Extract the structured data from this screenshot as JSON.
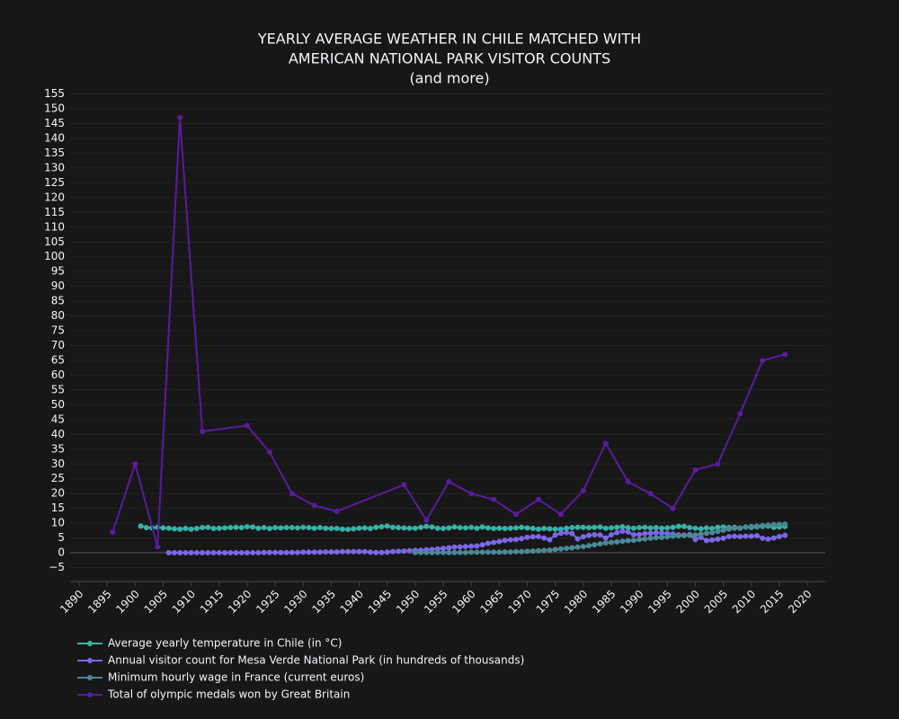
{
  "chart_data": {
    "type": "line",
    "title": [
      "YEARLY AVERAGE WEATHER IN CHILE MATCHED WITH",
      "AMERICAN NATIONAL PARK VISITOR COUNTS",
      "(and more)"
    ],
    "xlim": [
      1888.4,
      2023.2
    ],
    "xticks": [
      1890,
      1895,
      1900,
      1905,
      1910,
      1915,
      1920,
      1925,
      1930,
      1935,
      1940,
      1945,
      1950,
      1955,
      1960,
      1965,
      1970,
      1975,
      1980,
      1985,
      1990,
      1995,
      2000,
      2005,
      2010,
      2015,
      2020
    ],
    "ylim": [
      -9.7,
      157
    ],
    "yticks": [
      {
        "value": -5,
        "label": "−5"
      },
      0,
      5,
      10,
      15,
      20,
      25,
      30,
      35,
      40,
      45,
      50,
      55,
      60,
      65,
      70,
      75,
      80,
      85,
      90,
      95,
      100,
      105,
      110,
      115,
      120,
      125,
      130,
      135,
      140,
      145,
      150,
      155
    ],
    "grid": true,
    "series": [
      {
        "name": "Average yearly temperature in Chile (in °C)",
        "color": "#38b2a6",
        "x": [
          1901,
          1902,
          1903,
          1904,
          1905,
          1906,
          1907,
          1908,
          1909,
          1910,
          1911,
          1912,
          1913,
          1914,
          1915,
          1916,
          1917,
          1918,
          1919,
          1920,
          1921,
          1922,
          1923,
          1924,
          1925,
          1926,
          1927,
          1928,
          1929,
          1930,
          1931,
          1932,
          1933,
          1934,
          1935,
          1936,
          1937,
          1938,
          1939,
          1940,
          1941,
          1942,
          1943,
          1944,
          1945,
          1946,
          1947,
          1948,
          1949,
          1950,
          1951,
          1952,
          1953,
          1954,
          1955,
          1956,
          1957,
          1958,
          1959,
          1960,
          1961,
          1962,
          1963,
          1964,
          1965,
          1966,
          1967,
          1968,
          1969,
          1970,
          1971,
          1972,
          1973,
          1974,
          1975,
          1976,
          1977,
          1978,
          1979,
          1980,
          1981,
          1982,
          1983,
          1984,
          1985,
          1986,
          1987,
          1988,
          1989,
          1990,
          1991,
          1992,
          1993,
          1994,
          1995,
          1996,
          1997,
          1998,
          1999,
          2000,
          2001,
          2002,
          2003,
          2004,
          2005,
          2006,
          2007,
          2008,
          2009,
          2010,
          2011,
          2012,
          2013,
          2014,
          2015,
          2016
        ],
        "values": [
          9.0,
          8.5,
          8.4,
          8.6,
          8.4,
          8.3,
          8.1,
          8.0,
          8.2,
          8.0,
          8.2,
          8.5,
          8.6,
          8.2,
          8.3,
          8.4,
          8.5,
          8.6,
          8.5,
          8.8,
          8.7,
          8.3,
          8.5,
          8.2,
          8.5,
          8.4,
          8.5,
          8.5,
          8.4,
          8.6,
          8.5,
          8.3,
          8.5,
          8.3,
          8.2,
          8.2,
          8.0,
          7.9,
          8.1,
          8.3,
          8.4,
          8.2,
          8.6,
          8.8,
          9.0,
          8.6,
          8.5,
          8.4,
          8.3,
          8.3,
          8.6,
          8.9,
          8.7,
          8.3,
          8.2,
          8.4,
          8.7,
          8.5,
          8.4,
          8.6,
          8.3,
          8.7,
          8.4,
          8.2,
          8.3,
          8.2,
          8.3,
          8.4,
          8.6,
          8.4,
          8.2,
          8.0,
          8.2,
          8.1,
          8.0,
          8.0,
          8.3,
          8.5,
          8.6,
          8.6,
          8.5,
          8.6,
          8.7,
          8.3,
          8.4,
          8.6,
          8.8,
          8.5,
          8.3,
          8.5,
          8.6,
          8.4,
          8.5,
          8.3,
          8.4,
          8.6,
          8.9,
          8.9,
          8.5,
          8.3,
          8.1,
          8.4,
          8.2,
          8.6,
          8.7,
          8.5,
          8.6,
          8.3,
          8.7,
          8.6,
          8.8,
          8.9,
          9.0,
          8.6,
          8.7,
          8.9
        ]
      },
      {
        "name": "Annual visitor count for Mesa Verde National Park (in hundreds of thousands)",
        "color": "#7b68e6",
        "x": [
          1906,
          1907,
          1908,
          1909,
          1910,
          1911,
          1912,
          1913,
          1914,
          1915,
          1916,
          1917,
          1918,
          1919,
          1920,
          1921,
          1922,
          1923,
          1924,
          1925,
          1926,
          1927,
          1928,
          1929,
          1930,
          1931,
          1932,
          1933,
          1934,
          1935,
          1936,
          1937,
          1938,
          1939,
          1940,
          1941,
          1942,
          1943,
          1944,
          1945,
          1946,
          1947,
          1948,
          1949,
          1950,
          1951,
          1952,
          1953,
          1954,
          1955,
          1956,
          1957,
          1958,
          1959,
          1960,
          1961,
          1962,
          1963,
          1964,
          1965,
          1966,
          1967,
          1968,
          1969,
          1970,
          1971,
          1972,
          1973,
          1974,
          1975,
          1976,
          1977,
          1978,
          1979,
          1980,
          1981,
          1982,
          1983,
          1984,
          1985,
          1986,
          1987,
          1988,
          1989,
          1990,
          1991,
          1992,
          1993,
          1994,
          1995,
          1996,
          1997,
          1998,
          1999,
          2000,
          2001,
          2002,
          2003,
          2004,
          2005,
          2006,
          2007,
          2008,
          2009,
          2010,
          2011,
          2012,
          2013,
          2014,
          2015,
          2016
        ],
        "values": [
          0,
          0,
          0,
          0,
          0,
          0,
          0,
          0,
          0,
          0,
          0,
          0,
          0,
          0,
          0,
          0,
          0,
          0.1,
          0.1,
          0.1,
          0.1,
          0.1,
          0.1,
          0.1,
          0.2,
          0.2,
          0.2,
          0.2,
          0.3,
          0.3,
          0.3,
          0.4,
          0.4,
          0.4,
          0.4,
          0.4,
          0.2,
          0.1,
          0.1,
          0.2,
          0.4,
          0.5,
          0.6,
          0.7,
          0.8,
          0.9,
          1.0,
          1.1,
          1.3,
          1.5,
          1.7,
          1.9,
          2.0,
          2.1,
          2.2,
          2.3,
          2.7,
          3.2,
          3.5,
          3.8,
          4.2,
          4.4,
          4.5,
          4.8,
          5.2,
          5.4,
          5.5,
          5.0,
          4.4,
          6.0,
          6.6,
          6.8,
          6.5,
          4.7,
          5.4,
          5.9,
          6.1,
          6.0,
          5.0,
          6.1,
          6.8,
          7.3,
          7.0,
          6.1,
          6.2,
          6.5,
          6.6,
          6.8,
          6.7,
          6.5,
          6.3,
          6.1,
          6.0,
          6.2,
          4.5,
          5.2,
          4.1,
          4.3,
          4.6,
          4.9,
          5.5,
          5.6,
          5.5,
          5.6,
          5.6,
          5.8,
          4.9,
          4.6,
          5.0,
          5.5,
          5.9
        ]
      },
      {
        "name": "Minimum hourly wage in France (current euros)",
        "color": "#4a8898",
        "x": [
          1950,
          1951,
          1952,
          1953,
          1954,
          1955,
          1956,
          1957,
          1958,
          1959,
          1960,
          1961,
          1962,
          1963,
          1964,
          1965,
          1966,
          1967,
          1968,
          1969,
          1970,
          1971,
          1972,
          1973,
          1974,
          1975,
          1976,
          1977,
          1978,
          1979,
          1980,
          1981,
          1982,
          1983,
          1984,
          1985,
          1986,
          1987,
          1988,
          1989,
          1990,
          1991,
          1992,
          1993,
          1994,
          1995,
          1996,
          1997,
          1998,
          1999,
          2000,
          2001,
          2002,
          2003,
          2004,
          2005,
          2006,
          2007,
          2008,
          2009,
          2010,
          2011,
          2012,
          2013,
          2014,
          2015,
          2016
        ],
        "values": [
          0.1,
          0.1,
          0.1,
          0.1,
          0.1,
          0.1,
          0.1,
          0.1,
          0.1,
          0.1,
          0.2,
          0.2,
          0.2,
          0.2,
          0.2,
          0.2,
          0.3,
          0.3,
          0.4,
          0.4,
          0.5,
          0.6,
          0.7,
          0.8,
          0.9,
          1.1,
          1.3,
          1.5,
          1.7,
          1.9,
          2.1,
          2.4,
          2.7,
          3.0,
          3.3,
          3.5,
          3.7,
          3.9,
          4.1,
          4.2,
          4.5,
          4.7,
          4.9,
          5.1,
          5.2,
          5.4,
          5.6,
          5.7,
          5.8,
          5.9,
          6.0,
          6.3,
          6.6,
          6.8,
          7.2,
          7.6,
          8.0,
          8.3,
          8.4,
          8.7,
          8.9,
          9.0,
          9.2,
          9.4,
          9.5,
          9.6,
          9.7
        ]
      },
      {
        "name": "Total of olympic medals won by Great Britain",
        "color": "#5b1a9e",
        "x": [
          1896,
          1900,
          1904,
          1908,
          1912,
          1920,
          1924,
          1928,
          1932,
          1936,
          1948,
          1952,
          1956,
          1960,
          1964,
          1968,
          1972,
          1976,
          1980,
          1984,
          1988,
          1992,
          1996,
          2000,
          2004,
          2008,
          2012,
          2016
        ],
        "values": [
          7,
          30,
          2,
          147,
          41,
          43,
          34,
          20,
          16,
          14,
          23,
          11,
          24,
          20,
          18,
          13,
          18,
          13,
          21,
          37,
          24,
          20,
          15,
          28,
          30,
          47,
          65,
          67
        ]
      }
    ]
  }
}
